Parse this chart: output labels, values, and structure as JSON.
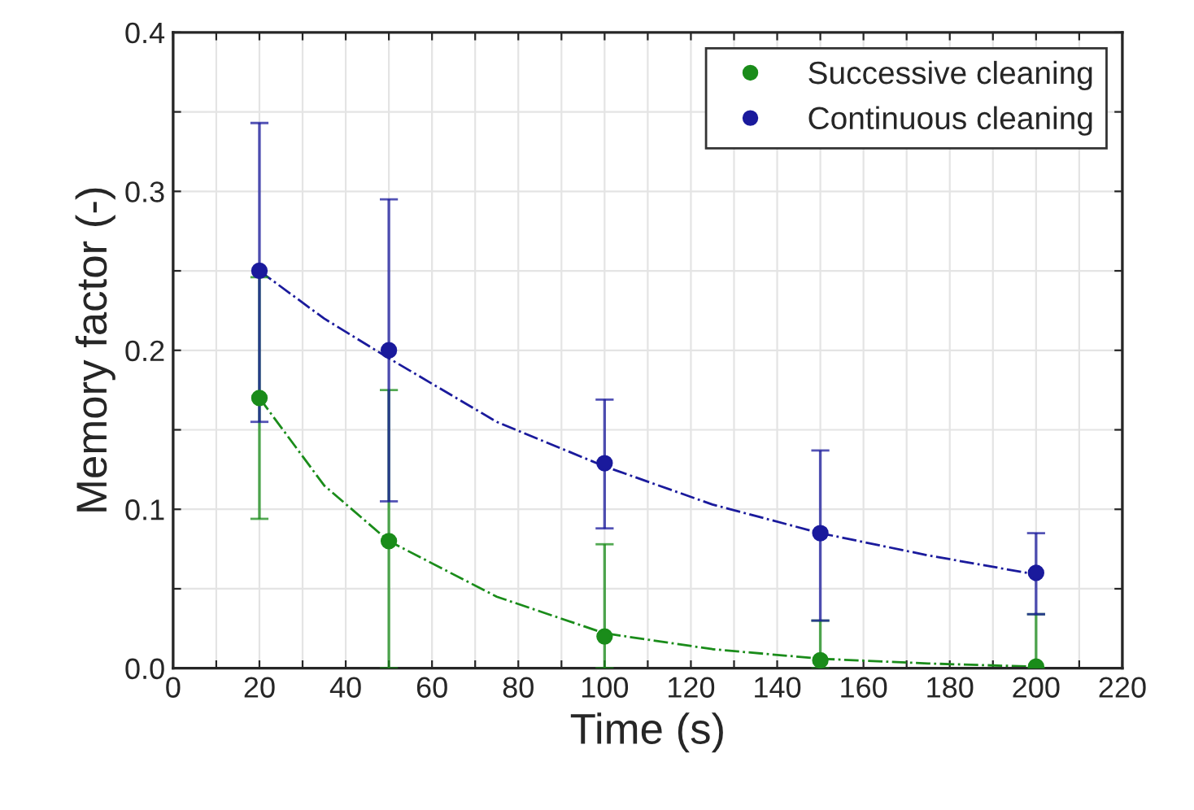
{
  "chart_data": {
    "type": "scatter",
    "xlabel": "Time (s)",
    "ylabel": "Memory factor (-)",
    "x": [
      20,
      50,
      100,
      150,
      200
    ],
    "series": [
      {
        "name": "Successive cleaning",
        "color": "#1a8c1a",
        "marker": "circle",
        "values": [
          0.17,
          0.08,
          0.02,
          0.005,
          0.001
        ],
        "errors": [
          [
            0.094,
            0.246
          ],
          [
            0.0,
            0.175
          ],
          [
            0.0,
            0.078
          ],
          [
            0.0,
            0.03
          ],
          [
            0.0,
            0.034
          ]
        ]
      },
      {
        "name": "Continuous cleaning",
        "color": "#1a1a9c",
        "marker": "circle",
        "values": [
          0.25,
          0.2,
          0.129,
          0.085,
          0.06
        ],
        "errors": [
          [
            0.155,
            0.343
          ],
          [
            0.105,
            0.295
          ],
          [
            0.088,
            0.169
          ],
          [
            0.03,
            0.137
          ],
          [
            0.034,
            0.085
          ]
        ]
      },
      {
        "type": "line",
        "color": "#1a8c1a",
        "line_style": "dashdot",
        "x": [
          20,
          35,
          50,
          75,
          100,
          125,
          150,
          175,
          200
        ],
        "values": [
          0.17,
          0.115,
          0.08,
          0.045,
          0.022,
          0.012,
          0.006,
          0.003,
          0.001
        ]
      },
      {
        "type": "line",
        "color": "#1a1a9c",
        "line_style": "dashdot",
        "x": [
          20,
          35,
          50,
          75,
          100,
          125,
          150,
          175,
          200
        ],
        "values": [
          0.25,
          0.22,
          0.195,
          0.155,
          0.127,
          0.103,
          0.085,
          0.071,
          0.059
        ]
      }
    ],
    "xlim": [
      0,
      220
    ],
    "xticks": [
      0,
      {
        "value": 10,
        "label": null
      },
      20,
      {
        "value": 30,
        "label": null
      },
      40,
      {
        "value": 50,
        "label": null
      },
      60,
      {
        "value": 70,
        "label": null
      },
      80,
      {
        "value": 90,
        "label": null
      },
      100,
      {
        "value": 110,
        "label": null
      },
      120,
      {
        "value": 130,
        "label": null
      },
      140,
      {
        "value": 150,
        "label": null
      },
      160,
      {
        "value": 170,
        "label": null
      },
      180,
      {
        "value": 190,
        "label": null
      },
      200,
      {
        "value": 210,
        "label": null
      },
      220
    ],
    "ylim": [
      0,
      0.4
    ],
    "yticks": [
      {
        "value": 0,
        "label": "0.0"
      },
      {
        "value": 0.05,
        "label": null
      },
      {
        "value": 0.1,
        "label": "0.1"
      },
      {
        "value": 0.15,
        "label": null
      },
      {
        "value": 0.2,
        "label": "0.2"
      },
      {
        "value": 0.25,
        "label": null
      },
      {
        "value": 0.3,
        "label": "0.3"
      },
      {
        "value": 0.35,
        "label": null
      },
      {
        "value": 0.4,
        "label": "0.4"
      }
    ],
    "grid": true,
    "legend": "top right"
  }
}
